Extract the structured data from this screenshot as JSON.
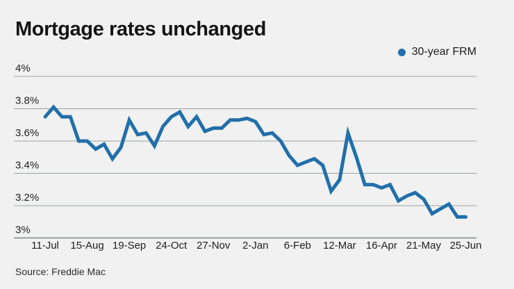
{
  "header": {
    "title": "Mortgage rates unchanged"
  },
  "legend": {
    "label": "30-year FRM"
  },
  "source": {
    "text": "Source: Freddie Mac"
  },
  "chart_data": {
    "type": "line",
    "title": "Mortgage rates unchanged",
    "unit": "%",
    "grid": true,
    "legend_position": "top-right",
    "ylim": [
      3.0,
      4.0
    ],
    "yticks": [
      {
        "value": 4.0,
        "label": "4%"
      },
      {
        "value": 3.8,
        "label": "3.8%"
      },
      {
        "value": 3.6,
        "label": "3.6%"
      },
      {
        "value": 3.4,
        "label": "3.4%"
      },
      {
        "value": 3.2,
        "label": "3.2%"
      },
      {
        "value": 3.0,
        "label": "3%"
      }
    ],
    "xticks": [
      {
        "index": 0,
        "label": "11-Jul"
      },
      {
        "index": 5,
        "label": "15-Aug"
      },
      {
        "index": 10,
        "label": "19-Sep"
      },
      {
        "index": 15,
        "label": "24-Oct"
      },
      {
        "index": 20,
        "label": "27-Nov"
      },
      {
        "index": 25,
        "label": "2-Jan"
      },
      {
        "index": 30,
        "label": "6-Feb"
      },
      {
        "index": 35,
        "label": "12-Mar"
      },
      {
        "index": 40,
        "label": "16-Apr"
      },
      {
        "index": 45,
        "label": "21-May"
      },
      {
        "index": 50,
        "label": "25-Jun"
      }
    ],
    "x": [
      "11-Jul",
      "18-Jul",
      "25-Jul",
      "1-Aug",
      "8-Aug",
      "15-Aug",
      "22-Aug",
      "29-Aug",
      "5-Sep",
      "12-Sep",
      "19-Sep",
      "26-Sep",
      "3-Oct",
      "10-Oct",
      "17-Oct",
      "24-Oct",
      "31-Oct",
      "7-Nov",
      "14-Nov",
      "21-Nov",
      "27-Nov",
      "5-Dec",
      "12-Dec",
      "19-Dec",
      "26-Dec",
      "2-Jan",
      "9-Jan",
      "16-Jan",
      "23-Jan",
      "30-Jan",
      "6-Feb",
      "13-Feb",
      "20-Feb",
      "27-Feb",
      "5-Mar",
      "12-Mar",
      "19-Mar",
      "26-Mar",
      "2-Apr",
      "9-Apr",
      "16-Apr",
      "23-Apr",
      "30-Apr",
      "7-May",
      "14-May",
      "21-May",
      "28-May",
      "4-Jun",
      "11-Jun",
      "18-Jun",
      "25-Jun"
    ],
    "series": [
      {
        "name": "30-year FRM",
        "color": "#216fab",
        "values": [
          3.75,
          3.81,
          3.75,
          3.75,
          3.6,
          3.6,
          3.55,
          3.58,
          3.49,
          3.56,
          3.73,
          3.64,
          3.65,
          3.57,
          3.69,
          3.75,
          3.78,
          3.69,
          3.75,
          3.66,
          3.68,
          3.68,
          3.73,
          3.73,
          3.74,
          3.72,
          3.64,
          3.65,
          3.6,
          3.51,
          3.45,
          3.47,
          3.49,
          3.45,
          3.29,
          3.36,
          3.65,
          3.5,
          3.33,
          3.33,
          3.31,
          3.33,
          3.23,
          3.26,
          3.28,
          3.24,
          3.15,
          3.18,
          3.21,
          3.13,
          3.13
        ]
      }
    ],
    "source": "Source: Freddie Mac"
  }
}
